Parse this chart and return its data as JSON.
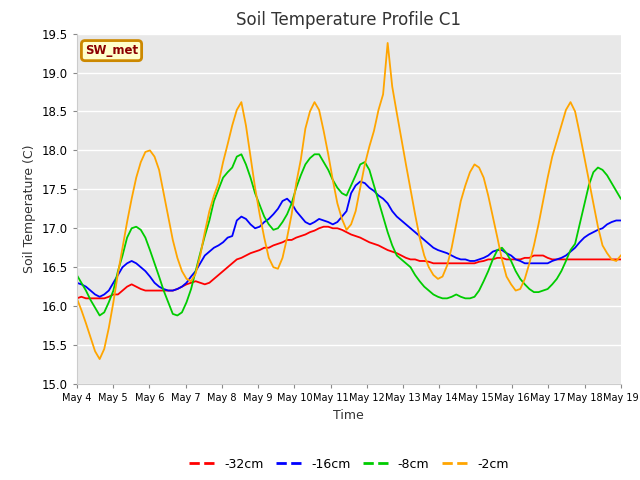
{
  "title": "Soil Temperature Profile C1",
  "xlabel": "Time",
  "ylabel": "Soil Temperature (C)",
  "ylim": [
    15.0,
    19.5
  ],
  "background_color": "#ffffff",
  "plot_bg_color": "#e8e8e8",
  "grid_color": "#ffffff",
  "annotation_label": "SW_met",
  "annotation_bg": "#ffffcc",
  "annotation_border": "#cc8800",
  "annotation_text_color": "#8b0000",
  "x_tick_labels": [
    "May 4",
    "May 5",
    "May 6",
    "May 7",
    "May 8",
    "May 9",
    "May 10",
    "May 11",
    "May 12",
    "May 13",
    "May 14",
    "May 15",
    "May 16",
    "May 17",
    "May 18",
    "May 19"
  ],
  "legend_labels": [
    "-32cm",
    "-16cm",
    "-8cm",
    "-2cm"
  ],
  "line_colors": [
    "#ff0000",
    "#0000ff",
    "#00cc00",
    "#ffa500"
  ],
  "t_32cm": [
    16.1,
    16.12,
    16.1,
    16.1,
    16.1,
    16.1,
    16.1,
    16.12,
    16.15,
    16.15,
    16.2,
    16.25,
    16.28,
    16.25,
    16.22,
    16.2,
    16.2,
    16.2,
    16.2,
    16.2,
    16.2,
    16.2,
    16.22,
    16.25,
    16.28,
    16.3,
    16.32,
    16.3,
    16.28,
    16.3,
    16.35,
    16.4,
    16.45,
    16.5,
    16.55,
    16.6,
    16.62,
    16.65,
    16.68,
    16.7,
    16.72,
    16.75,
    16.75,
    16.78,
    16.8,
    16.82,
    16.85,
    16.85,
    16.88,
    16.9,
    16.92,
    16.95,
    16.97,
    17.0,
    17.02,
    17.02,
    17.0,
    17.0,
    16.98,
    16.95,
    16.92,
    16.9,
    16.88,
    16.85,
    16.82,
    16.8,
    16.78,
    16.75,
    16.72,
    16.7,
    16.68,
    16.65,
    16.62,
    16.6,
    16.6,
    16.58,
    16.58,
    16.57,
    16.55,
    16.55,
    16.55,
    16.55,
    16.55,
    16.55,
    16.55,
    16.55,
    16.55,
    16.55,
    16.57,
    16.58,
    16.6,
    16.6,
    16.62,
    16.62,
    16.6,
    16.6,
    16.6,
    16.6,
    16.62,
    16.62,
    16.65,
    16.65,
    16.65,
    16.62,
    16.6,
    16.6,
    16.6,
    16.6,
    16.6,
    16.6,
    16.6,
    16.6,
    16.6,
    16.6,
    16.6,
    16.6,
    16.6,
    16.6,
    16.6,
    16.6
  ],
  "t_16cm": [
    16.3,
    16.28,
    16.25,
    16.2,
    16.15,
    16.12,
    16.15,
    16.2,
    16.3,
    16.4,
    16.5,
    16.55,
    16.58,
    16.55,
    16.5,
    16.45,
    16.38,
    16.3,
    16.25,
    16.22,
    16.2,
    16.2,
    16.22,
    16.25,
    16.3,
    16.38,
    16.45,
    16.55,
    16.65,
    16.7,
    16.75,
    16.78,
    16.82,
    16.88,
    16.9,
    17.1,
    17.15,
    17.12,
    17.05,
    17.0,
    17.02,
    17.08,
    17.12,
    17.18,
    17.25,
    17.35,
    17.38,
    17.32,
    17.22,
    17.15,
    17.08,
    17.05,
    17.08,
    17.12,
    17.1,
    17.08,
    17.05,
    17.08,
    17.15,
    17.22,
    17.45,
    17.55,
    17.6,
    17.58,
    17.52,
    17.48,
    17.42,
    17.38,
    17.32,
    17.22,
    17.15,
    17.1,
    17.05,
    17.0,
    16.95,
    16.9,
    16.85,
    16.8,
    16.75,
    16.72,
    16.7,
    16.68,
    16.65,
    16.62,
    16.6,
    16.6,
    16.58,
    16.58,
    16.6,
    16.62,
    16.65,
    16.7,
    16.72,
    16.72,
    16.68,
    16.65,
    16.6,
    16.58,
    16.55,
    16.55,
    16.55,
    16.55,
    16.55,
    16.55,
    16.58,
    16.6,
    16.62,
    16.65,
    16.7,
    16.75,
    16.82,
    16.88,
    16.92,
    16.95,
    16.98,
    17.0,
    17.05,
    17.08,
    17.1,
    17.1
  ],
  "t_8cm": [
    16.4,
    16.3,
    16.2,
    16.08,
    15.98,
    15.88,
    15.92,
    16.05,
    16.2,
    16.45,
    16.65,
    16.88,
    17.0,
    17.02,
    16.98,
    16.88,
    16.72,
    16.55,
    16.38,
    16.2,
    16.05,
    15.9,
    15.88,
    15.92,
    16.05,
    16.22,
    16.45,
    16.68,
    16.9,
    17.1,
    17.35,
    17.5,
    17.65,
    17.72,
    17.78,
    17.92,
    17.95,
    17.82,
    17.65,
    17.45,
    17.3,
    17.15,
    17.05,
    16.98,
    17.0,
    17.08,
    17.18,
    17.32,
    17.52,
    17.68,
    17.82,
    17.9,
    17.95,
    17.95,
    17.85,
    17.75,
    17.62,
    17.52,
    17.45,
    17.42,
    17.55,
    17.68,
    17.82,
    17.85,
    17.75,
    17.55,
    17.35,
    17.15,
    16.95,
    16.78,
    16.65,
    16.6,
    16.55,
    16.5,
    16.4,
    16.32,
    16.25,
    16.2,
    16.15,
    16.12,
    16.1,
    16.1,
    16.12,
    16.15,
    16.12,
    16.1,
    16.1,
    16.12,
    16.2,
    16.32,
    16.45,
    16.6,
    16.72,
    16.75,
    16.68,
    16.58,
    16.45,
    16.35,
    16.28,
    16.22,
    16.18,
    16.18,
    16.2,
    16.22,
    16.28,
    16.35,
    16.45,
    16.58,
    16.72,
    16.8,
    17.05,
    17.3,
    17.55,
    17.72,
    17.78,
    17.75,
    17.68,
    17.58,
    17.48,
    17.38
  ],
  "t_2cm": [
    16.1,
    15.95,
    15.78,
    15.6,
    15.42,
    15.32,
    15.45,
    15.72,
    16.05,
    16.42,
    16.75,
    17.08,
    17.38,
    17.65,
    17.85,
    17.98,
    18.0,
    17.92,
    17.75,
    17.45,
    17.15,
    16.85,
    16.62,
    16.45,
    16.35,
    16.32,
    16.42,
    16.65,
    16.95,
    17.22,
    17.42,
    17.58,
    17.85,
    18.08,
    18.32,
    18.52,
    18.62,
    18.32,
    17.92,
    17.52,
    17.18,
    16.88,
    16.62,
    16.5,
    16.48,
    16.62,
    16.88,
    17.18,
    17.58,
    17.88,
    18.28,
    18.5,
    18.62,
    18.52,
    18.25,
    17.95,
    17.62,
    17.32,
    17.12,
    16.98,
    17.05,
    17.22,
    17.52,
    17.82,
    18.05,
    18.25,
    18.52,
    18.72,
    19.38,
    18.82,
    18.48,
    18.15,
    17.82,
    17.5,
    17.18,
    16.88,
    16.65,
    16.5,
    16.4,
    16.35,
    16.38,
    16.52,
    16.75,
    17.05,
    17.35,
    17.55,
    17.72,
    17.82,
    17.78,
    17.65,
    17.42,
    17.15,
    16.88,
    16.6,
    16.38,
    16.28,
    16.2,
    16.22,
    16.35,
    16.55,
    16.78,
    17.05,
    17.35,
    17.65,
    17.92,
    18.12,
    18.32,
    18.52,
    18.62,
    18.5,
    18.22,
    17.92,
    17.62,
    17.32,
    17.02,
    16.78,
    16.68,
    16.6,
    16.58,
    16.65
  ]
}
